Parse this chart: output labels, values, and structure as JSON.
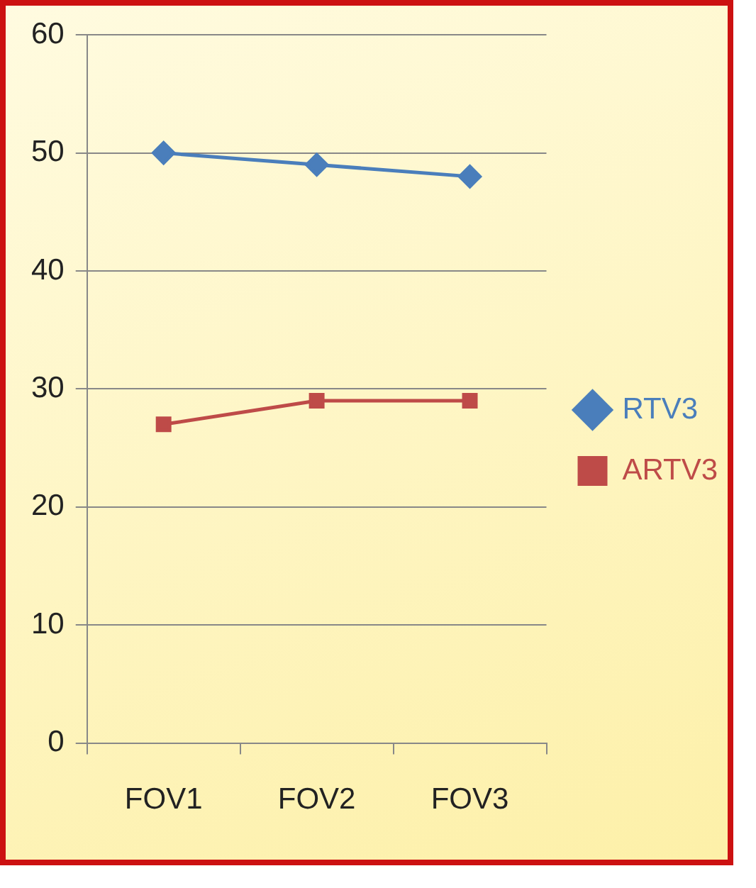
{
  "chart_data": {
    "type": "line",
    "categories": [
      "FOV1",
      "FOV2",
      "FOV3"
    ],
    "series": [
      {
        "name": "RTV3",
        "color": "#4a7ebb",
        "values": [
          50,
          49,
          48
        ],
        "marker": "diamond"
      },
      {
        "name": "ARTV3",
        "color": "#be4b48",
        "values": [
          27,
          29,
          29
        ],
        "marker": "square"
      }
    ],
    "ylim": [
      0,
      60
    ],
    "yticks": [
      0,
      10,
      20,
      30,
      40,
      50,
      60
    ],
    "grid": "y",
    "legend": "right"
  }
}
